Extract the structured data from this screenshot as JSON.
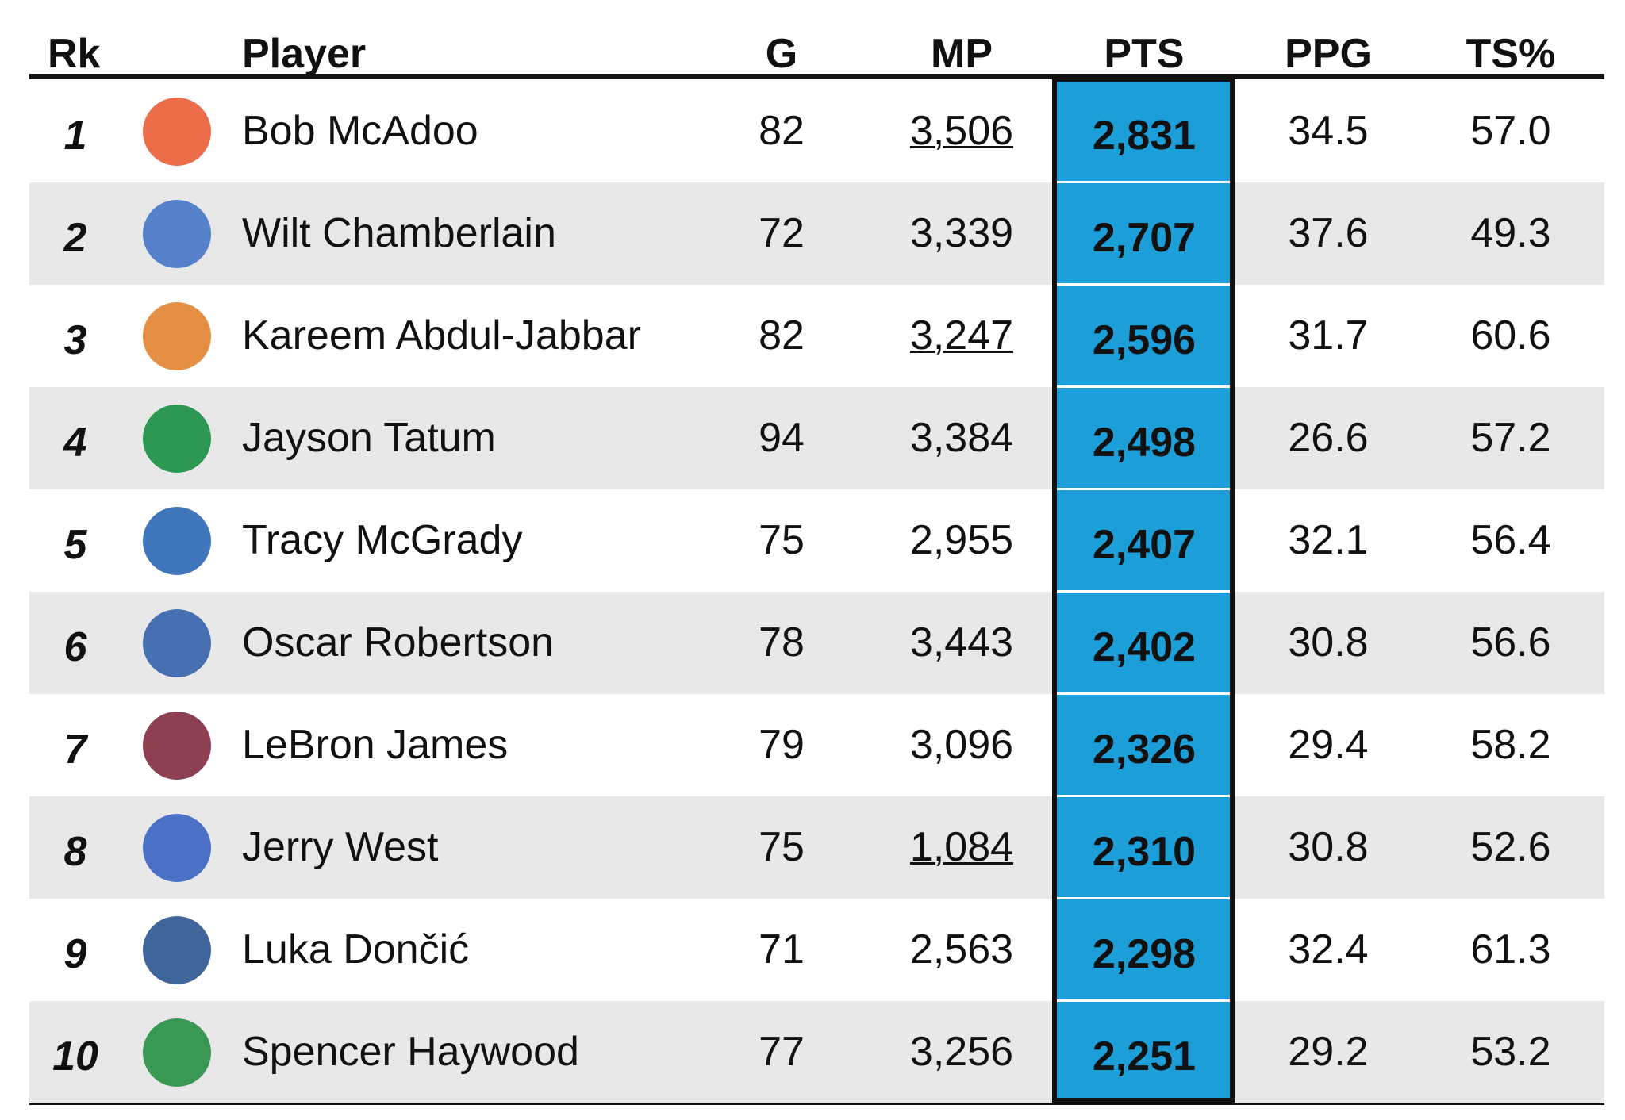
{
  "table": {
    "header": [
      "Rk",
      "Player",
      "G",
      "MP",
      "PTS",
      "PPG",
      "TS%"
    ],
    "rows": [
      {
        "rk": "1",
        "player": "Bob McAdoo",
        "g": "82",
        "mp": "3,506",
        "pts": "2,831",
        "ppg": "34.5",
        "ts": "57.0",
        "mp_underlined": true,
        "logo_color": "#e8542a"
      },
      {
        "rk": "2",
        "player": "Wilt Chamberlain",
        "g": "72",
        "mp": "3,339",
        "pts": "2,707",
        "ppg": "37.6",
        "ts": "49.3",
        "mp_underlined": false,
        "logo_color": "#3a6fc4"
      },
      {
        "rk": "3",
        "player": "Kareem Abdul-Jabbar",
        "g": "82",
        "mp": "3,247",
        "pts": "2,596",
        "ppg": "31.7",
        "ts": "60.6",
        "mp_underlined": true,
        "logo_color": "#e07b24"
      },
      {
        "rk": "4",
        "player": "Jayson Tatum",
        "g": "94",
        "mp": "3,384",
        "pts": "2,498",
        "ppg": "26.6",
        "ts": "57.2",
        "mp_underlined": false,
        "logo_color": "#0a8a3a"
      },
      {
        "rk": "5",
        "player": "Tracy McGrady",
        "g": "75",
        "mp": "2,955",
        "pts": "2,407",
        "ppg": "32.1",
        "ts": "56.4",
        "mp_underlined": false,
        "logo_color": "#1f5fb0"
      },
      {
        "rk": "6",
        "player": "Oscar Robertson",
        "g": "78",
        "mp": "3,443",
        "pts": "2,402",
        "ppg": "30.8",
        "ts": "56.6",
        "mp_underlined": false,
        "logo_color": "#2a5aa8"
      },
      {
        "rk": "7",
        "player": "LeBron James",
        "g": "79",
        "mp": "3,096",
        "pts": "2,326",
        "ppg": "29.4",
        "ts": "58.2",
        "mp_underlined": false,
        "logo_color": "#7a1f35"
      },
      {
        "rk": "8",
        "player": "Jerry West",
        "g": "75",
        "mp": "1,084",
        "pts": "2,310",
        "ppg": "30.8",
        "ts": "52.6",
        "mp_underlined": true,
        "logo_color": "#2e5cc0"
      },
      {
        "rk": "9",
        "player": "Luka Dončić",
        "g": "71",
        "mp": "2,563",
        "pts": "2,298",
        "ppg": "32.4",
        "ts": "61.3",
        "mp_underlined": false,
        "logo_color": "#1e4a8a"
      },
      {
        "rk": "10",
        "player": "Spencer Haywood",
        "g": "77",
        "mp": "3,256",
        "pts": "2,251",
        "ppg": "29.2",
        "ts": "53.2",
        "mp_underlined": false,
        "logo_color": "#1a8a3a"
      }
    ]
  }
}
